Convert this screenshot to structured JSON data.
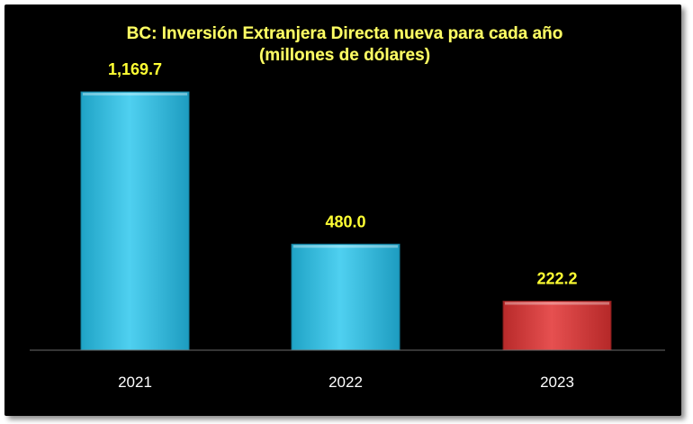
{
  "chart_data": {
    "type": "bar",
    "title": "BC: Inversión Extranjera Directa nueva para cada año",
    "subtitle": "(millones de dólares)",
    "categories": [
      "2021",
      "2022",
      "2023"
    ],
    "values": [
      1169.7,
      480.0,
      222.2
    ],
    "value_labels": [
      "1,169.7",
      "480.0",
      "222.2"
    ],
    "ylim": [
      0,
      1300
    ],
    "grid": false,
    "legend": "none",
    "colors": [
      "#3cc3e6",
      "#3cc3e6",
      "#dc3c3c"
    ],
    "background": "#000000"
  }
}
